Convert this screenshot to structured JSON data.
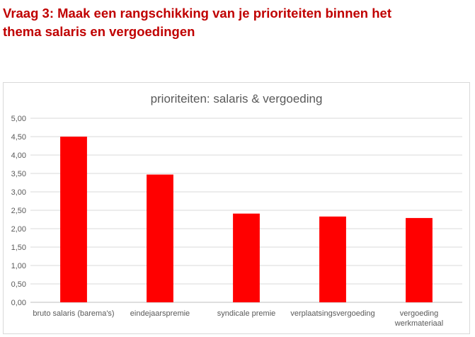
{
  "heading": {
    "line1": "Vraag 3: Maak een rangschikking van je prioriteiten binnen het",
    "line2": "thema salaris en vergoedingen"
  },
  "chart_data": {
    "type": "bar",
    "title": "prioriteiten: salaris & vergoeding",
    "categories": [
      [
        "bruto salaris (barema's)"
      ],
      [
        "eindejaarspremie"
      ],
      [
        "syndicale premie"
      ],
      [
        "verplaatsingsvergoeding"
      ],
      [
        "vergoeding",
        "werkmateriaal"
      ]
    ],
    "values": [
      4.5,
      3.47,
      2.41,
      2.33,
      2.29
    ],
    "ylim": [
      0,
      5
    ],
    "yticks": [
      "0,00",
      "0,50",
      "1,00",
      "1,50",
      "2,00",
      "2,50",
      "3,00",
      "3,50",
      "4,00",
      "4,50",
      "5,00"
    ],
    "grid": true,
    "bar_color": "#ff0000",
    "xlabel": "",
    "ylabel": ""
  }
}
